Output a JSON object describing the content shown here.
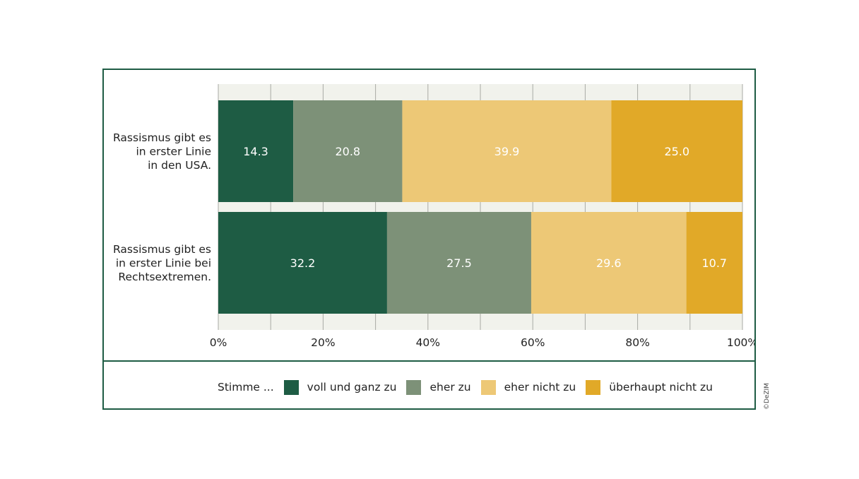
{
  "chart_data": {
    "type": "bar",
    "orientation": "horizontal",
    "stacked": true,
    "categories": [
      [
        "Rassismus gibt es",
        "in erster Linie",
        "in den USA."
      ],
      [
        "Rassismus gibt es",
        "in erster Linie bei",
        "Rechtsextremen."
      ]
    ],
    "series": [
      {
        "name": "voll und ganz zu",
        "color": "#1e5c44",
        "values": [
          14.3,
          32.2
        ],
        "labels": [
          "14.3",
          "32.2"
        ]
      },
      {
        "name": "eher zu",
        "color": "#7d9178",
        "values": [
          20.8,
          27.5
        ],
        "labels": [
          "20.8",
          "27.5"
        ]
      },
      {
        "name": "eher nicht zu",
        "color": "#edc876",
        "values": [
          39.9,
          29.6
        ],
        "labels": [
          "39.9",
          "29.6"
        ]
      },
      {
        "name": "überhaupt nicht zu",
        "color": "#e1a928",
        "values": [
          25.0,
          10.7
        ],
        "labels": [
          "25.0",
          "10.7"
        ]
      }
    ],
    "xlim": [
      0,
      100
    ],
    "xticks": [
      "0%",
      "20%",
      "40%",
      "60%",
      "80%",
      "100%"
    ],
    "grid": true,
    "legend_title": "Stimme ...",
    "legend_position": "bottom"
  },
  "credit": "©DeZIM"
}
